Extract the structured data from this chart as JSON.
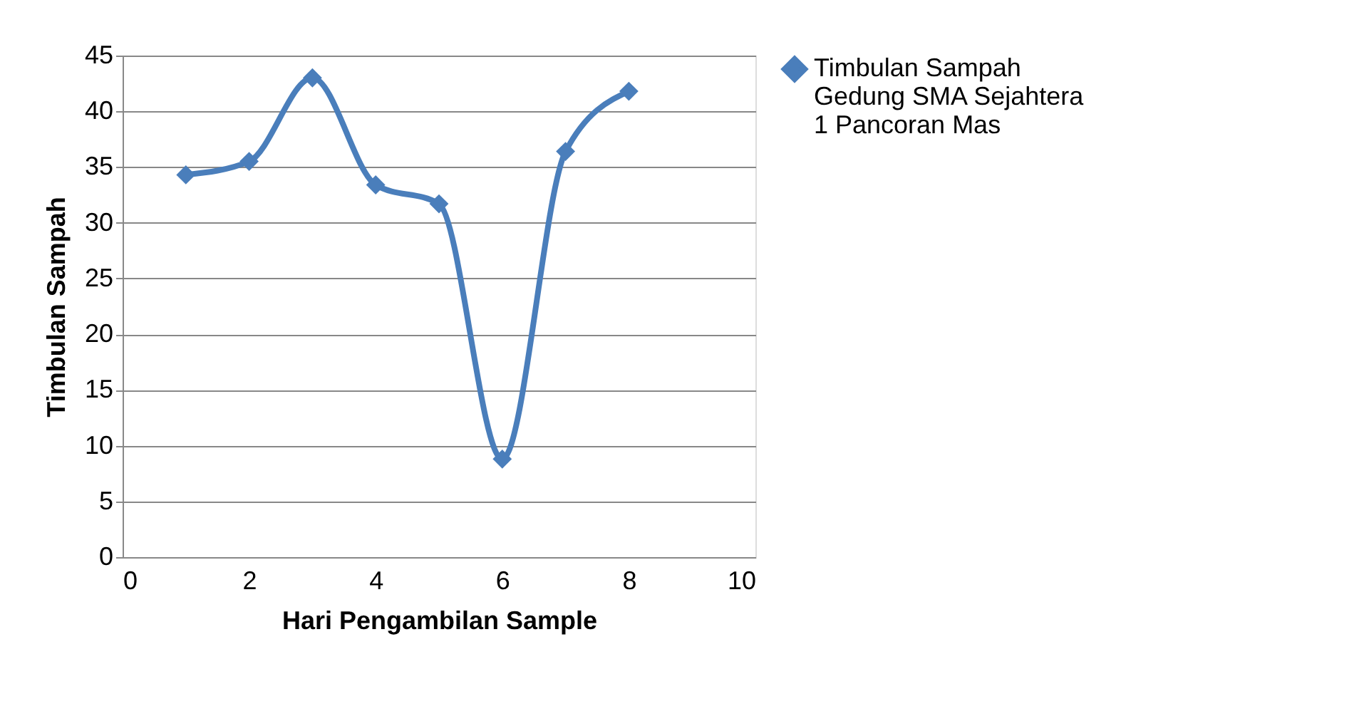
{
  "chart_data": {
    "type": "line",
    "xlabel": "Hari Pengambilan Sample",
    "ylabel": "Timbulan Sampah",
    "x": [
      1,
      2,
      3,
      4,
      5,
      6,
      7,
      8
    ],
    "series": [
      {
        "name": "Timbulan Sampah Gedung SMA Sejahtera 1 Pancoran Mas",
        "color": "#4a7ebb",
        "values": [
          34.3,
          35.5,
          43.0,
          33.4,
          31.7,
          8.8,
          36.4,
          41.8
        ]
      }
    ],
    "xlim": [
      0,
      10
    ],
    "xticks": [
      0,
      2,
      4,
      6,
      8,
      10
    ],
    "ylim": [
      0,
      45
    ],
    "yticks": [
      0,
      5,
      10,
      15,
      20,
      25,
      30,
      35,
      40,
      45
    ],
    "grid": "y",
    "legend": "right",
    "marker": "diamond",
    "line_style": "solid"
  }
}
